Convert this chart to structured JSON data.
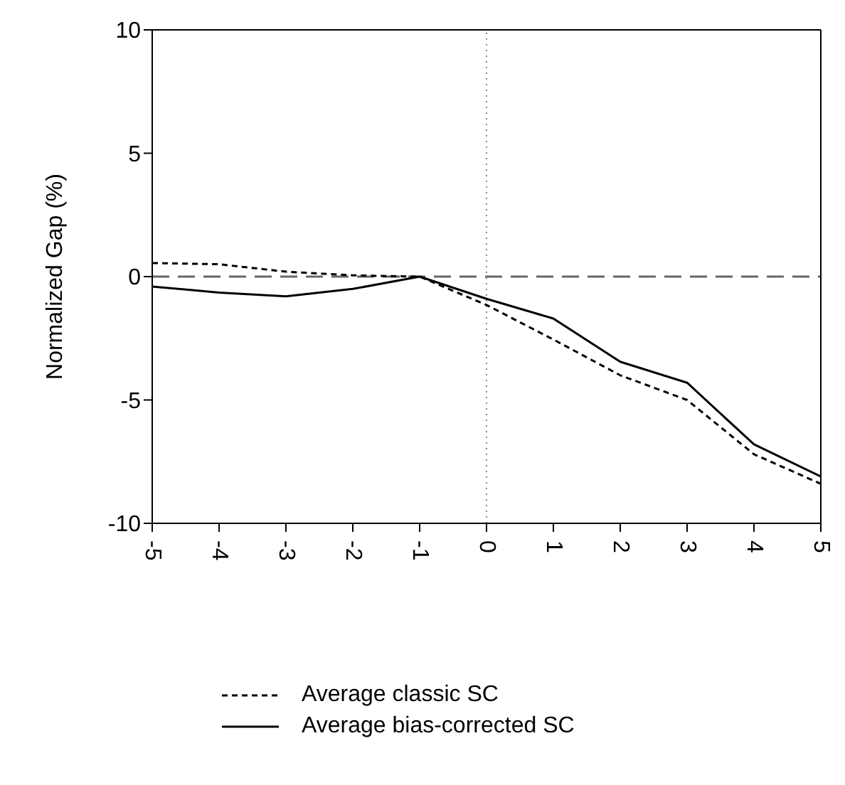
{
  "chart_data": {
    "type": "line",
    "ylabel": "Normalized Gap (%)",
    "x": [
      -5,
      -4,
      -3,
      -2,
      -1,
      0,
      1,
      2,
      3,
      4,
      5
    ],
    "xlim": [
      -5,
      5
    ],
    "xticks": [
      -5,
      -4,
      -3,
      -2,
      -1,
      0,
      1,
      2,
      3,
      4,
      5
    ],
    "ylim": [
      -10,
      10
    ],
    "yticks": [
      -10,
      -5,
      0,
      5,
      10
    ],
    "series": [
      {
        "name": "Average classic SC",
        "color": "#000000",
        "line_style": "dashed",
        "values": [
          0.55,
          0.5,
          0.2,
          0.05,
          0,
          -1.15,
          -2.55,
          -4.0,
          -5.0,
          -7.2,
          -8.4
        ]
      },
      {
        "name": "Average bias-corrected SC",
        "color": "#000000",
        "line_style": "solid",
        "values": [
          -0.4,
          -0.65,
          -0.8,
          -0.5,
          0,
          -0.9,
          -1.7,
          -3.45,
          -4.3,
          -6.8,
          -8.1
        ]
      }
    ],
    "ref_lines": [
      {
        "axis": "y",
        "value": 0,
        "color": "#666666",
        "line_style": "dashed"
      },
      {
        "axis": "x",
        "value": 0,
        "color": "#888888",
        "line_style": "dotted"
      }
    ],
    "legend": "bottom",
    "grid": false,
    "marker": "none"
  }
}
